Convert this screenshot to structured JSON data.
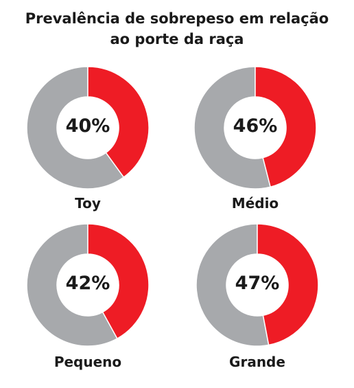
{
  "title_line1": "Prevalência de sobrepeso em relação",
  "title_line2": "ao porte da raça",
  "colors": {
    "highlight": "#ee1c25",
    "rest": "#a7a9ac"
  },
  "chart_data": [
    {
      "type": "pie",
      "label": "Toy",
      "value": 40,
      "display": "40%"
    },
    {
      "type": "pie",
      "label": "Médio",
      "value": 46,
      "display": "46%"
    },
    {
      "type": "pie",
      "label": "Pequeno",
      "value": 42,
      "display": "42%"
    },
    {
      "type": "pie",
      "label": "Grande",
      "value": 47,
      "display": "47%"
    }
  ]
}
